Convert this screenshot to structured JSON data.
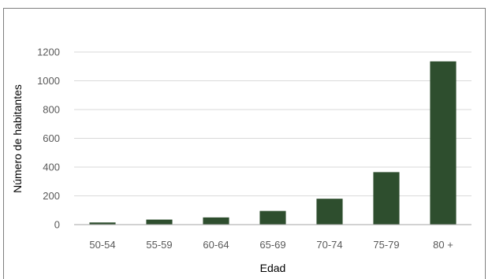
{
  "chart_data": {
    "type": "bar",
    "title": "",
    "xlabel": "Edad",
    "ylabel": "Número de habitantes",
    "categories": [
      "50-54",
      "55-59",
      "60-64",
      "65-69",
      "70-74",
      "75-79",
      "80 +"
    ],
    "values": [
      15,
      35,
      50,
      95,
      180,
      365,
      1135
    ],
    "ylim": [
      0,
      1200
    ],
    "yticks": [
      0,
      200,
      400,
      600,
      800,
      1000,
      1200
    ],
    "grid": true,
    "bar_color": "#2e4e2e",
    "grid_color": "#d9d9d9",
    "axis_color": "#a6a6a6"
  }
}
